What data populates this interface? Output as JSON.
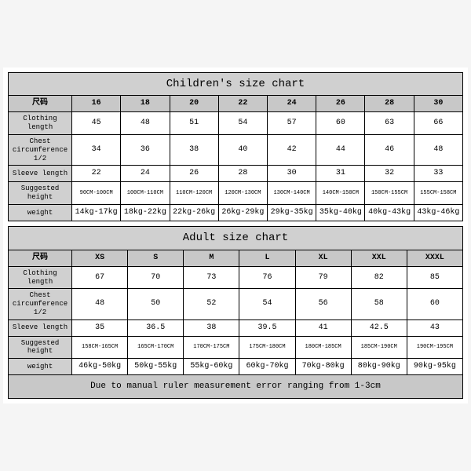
{
  "children_table": {
    "title": "Children's size chart",
    "col_label": "尺码",
    "sizes": [
      "16",
      "18",
      "20",
      "22",
      "24",
      "26",
      "28",
      "30"
    ],
    "rows": [
      {
        "label": "Clothing length",
        "vals": [
          "45",
          "48",
          "51",
          "54",
          "57",
          "60",
          "63",
          "66"
        ]
      },
      {
        "label": "Chest circumference 1/2",
        "vals": [
          "34",
          "36",
          "38",
          "40",
          "42",
          "44",
          "46",
          "48"
        ]
      },
      {
        "label": "Sleeve length",
        "vals": [
          "22",
          "24",
          "26",
          "28",
          "30",
          "31",
          "32",
          "33"
        ]
      },
      {
        "label": "Suggested height",
        "vals": [
          "90CM-100CM",
          "100CM-110CM",
          "110CM-120CM",
          "120CM-130CM",
          "130CM-140CM",
          "140CM-150CM",
          "150CM-155CM",
          "155CM-158CM"
        ],
        "small": true
      },
      {
        "label": "weight",
        "vals": [
          "14kg-17kg",
          "18kg-22kg",
          "22kg-26kg",
          "26kg-29kg",
          "29kg-35kg",
          "35kg-40kg",
          "40kg-43kg",
          "43kg-46kg"
        ]
      }
    ]
  },
  "adult_table": {
    "title": "Adult size chart",
    "col_label": "尺码",
    "sizes": [
      "XS",
      "S",
      "M",
      "L",
      "XL",
      "XXL",
      "XXXL"
    ],
    "rows": [
      {
        "label": "Clothing length",
        "vals": [
          "67",
          "70",
          "73",
          "76",
          "79",
          "82",
          "85"
        ]
      },
      {
        "label": "Chest circumference 1/2",
        "vals": [
          "48",
          "50",
          "52",
          "54",
          "56",
          "58",
          "60"
        ]
      },
      {
        "label": "Sleeve length",
        "vals": [
          "35",
          "36.5",
          "38",
          "39.5",
          "41",
          "42.5",
          "43"
        ]
      },
      {
        "label": "Suggested height",
        "vals": [
          "158CM-165CM",
          "165CM-170CM",
          "170CM-175CM",
          "175CM-180CM",
          "180CM-185CM",
          "185CM-190CM",
          "190CM-195CM"
        ],
        "small": true
      },
      {
        "label": "weight",
        "vals": [
          "46kg-50kg",
          "50kg-55kg",
          "55kg-60kg",
          "60kg-70kg",
          "70kg-80kg",
          "80kg-90kg",
          "90kg-95kg"
        ]
      }
    ],
    "note": "Due to manual ruler measurement error ranging from 1-3cm"
  },
  "colors": {
    "title_bg": "#d0d0d0",
    "header_bg": "#c8c8c8",
    "label_bg": "#d0d0d0",
    "border": "#000000"
  }
}
